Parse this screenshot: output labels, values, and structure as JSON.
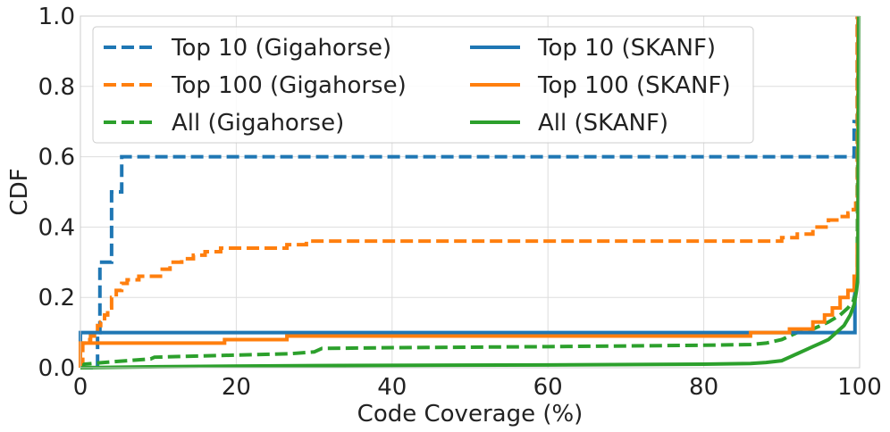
{
  "chart_data": {
    "type": "line",
    "title": "",
    "xlabel": "Code Coverage (%)",
    "ylabel": "CDF",
    "xlim": [
      0,
      100
    ],
    "ylim": [
      0,
      1
    ],
    "xticks": [
      "0",
      "20",
      "40",
      "60",
      "80",
      "100"
    ],
    "yticks": [
      "0.0",
      "0.2",
      "0.4",
      "0.6",
      "0.8",
      "1.0"
    ],
    "grid": true,
    "legend": {
      "placement": "upper-left",
      "columns": 2
    },
    "series": [
      {
        "name": "Top 10 (Gigahorse)",
        "color": "#1f77b4",
        "dash": "dashed",
        "step": true,
        "points": [
          [
            0,
            0
          ],
          [
            2.2,
            0
          ],
          [
            2.2,
            0.1
          ],
          [
            2.5,
            0.1
          ],
          [
            2.5,
            0.3
          ],
          [
            4,
            0.3
          ],
          [
            4,
            0.5
          ],
          [
            5.3,
            0.5
          ],
          [
            5.3,
            0.6
          ],
          [
            99.3,
            0.6
          ],
          [
            99.3,
            0.7
          ],
          [
            99.7,
            0.7
          ],
          [
            99.7,
            1.0
          ]
        ]
      },
      {
        "name": "Top 100 (Gigahorse)",
        "color": "#ff7f0e",
        "dash": "dashed",
        "step": true,
        "points": [
          [
            0,
            0.0
          ],
          [
            0.3,
            0.07
          ],
          [
            0.8,
            0.08
          ],
          [
            1.3,
            0.09
          ],
          [
            1.8,
            0.1
          ],
          [
            2.2,
            0.12
          ],
          [
            2.6,
            0.13
          ],
          [
            3.1,
            0.15
          ],
          [
            3.5,
            0.17
          ],
          [
            4.0,
            0.2
          ],
          [
            4.6,
            0.22
          ],
          [
            5.3,
            0.24
          ],
          [
            6.0,
            0.25
          ],
          [
            7.5,
            0.26
          ],
          [
            10.5,
            0.28
          ],
          [
            11.5,
            0.3
          ],
          [
            13,
            0.31
          ],
          [
            14.5,
            0.32
          ],
          [
            16,
            0.33
          ],
          [
            18,
            0.34
          ],
          [
            26.5,
            0.35
          ],
          [
            29,
            0.36
          ],
          [
            86,
            0.36
          ],
          [
            90,
            0.37
          ],
          [
            92,
            0.38
          ],
          [
            94,
            0.4
          ],
          [
            96,
            0.42
          ],
          [
            97.5,
            0.43
          ],
          [
            98.5,
            0.44
          ],
          [
            99.2,
            0.45
          ],
          [
            99.5,
            0.48
          ],
          [
            99.7,
            0.48
          ],
          [
            99.7,
            1.0
          ]
        ]
      },
      {
        "name": "All (Gigahorse)",
        "color": "#2ca02c",
        "dash": "dashed",
        "step": false,
        "points": [
          [
            0,
            0.0
          ],
          [
            0.5,
            0.01
          ],
          [
            3,
            0.015
          ],
          [
            6,
            0.02
          ],
          [
            9,
            0.025
          ],
          [
            9.5,
            0.03
          ],
          [
            27,
            0.04
          ],
          [
            30,
            0.045
          ],
          [
            31,
            0.055
          ],
          [
            40,
            0.057
          ],
          [
            60,
            0.06
          ],
          [
            80,
            0.064
          ],
          [
            86,
            0.066
          ],
          [
            88,
            0.07
          ],
          [
            90,
            0.08
          ],
          [
            92,
            0.1
          ],
          [
            94,
            0.11
          ],
          [
            96,
            0.13
          ],
          [
            97.5,
            0.15
          ],
          [
            98.5,
            0.17
          ],
          [
            99.2,
            0.19
          ],
          [
            99.5,
            0.22
          ],
          [
            99.7,
            0.25
          ],
          [
            99.8,
            1.0
          ]
        ]
      },
      {
        "name": "Top 10 (SKANF)",
        "color": "#1f77b4",
        "dash": "solid",
        "step": true,
        "points": [
          [
            0,
            0.0
          ],
          [
            0,
            0.1
          ],
          [
            99.4,
            0.1
          ],
          [
            99.4,
            0.25
          ],
          [
            99.8,
            0.25
          ],
          [
            99.8,
            1.0
          ]
        ]
      },
      {
        "name": "Top 100 (SKANF)",
        "color": "#ff7f0e",
        "dash": "solid",
        "step": true,
        "points": [
          [
            0,
            0.0
          ],
          [
            0,
            0.07
          ],
          [
            18.5,
            0.07
          ],
          [
            18.5,
            0.08
          ],
          [
            26.5,
            0.08
          ],
          [
            26.5,
            0.09
          ],
          [
            86,
            0.09
          ],
          [
            86,
            0.1
          ],
          [
            91,
            0.1
          ],
          [
            91,
            0.11
          ],
          [
            94,
            0.11
          ],
          [
            94,
            0.13
          ],
          [
            95.5,
            0.13
          ],
          [
            95.5,
            0.15
          ],
          [
            96.5,
            0.15
          ],
          [
            96.5,
            0.17
          ],
          [
            97.5,
            0.17
          ],
          [
            97.5,
            0.2
          ],
          [
            98.5,
            0.2
          ],
          [
            98.5,
            0.22
          ],
          [
            99.3,
            0.22
          ],
          [
            99.3,
            0.26
          ],
          [
            99.7,
            0.26
          ],
          [
            99.7,
            0.35
          ],
          [
            99.8,
            0.35
          ],
          [
            99.8,
            1.0
          ]
        ]
      },
      {
        "name": "All (SKANF)",
        "color": "#2ca02c",
        "dash": "solid",
        "step": false,
        "points": [
          [
            0,
            0.0
          ],
          [
            10,
            0.003
          ],
          [
            30,
            0.006
          ],
          [
            60,
            0.008
          ],
          [
            80,
            0.01
          ],
          [
            86,
            0.012
          ],
          [
            88,
            0.015
          ],
          [
            90,
            0.02
          ],
          [
            91,
            0.03
          ],
          [
            92,
            0.04
          ],
          [
            93,
            0.05
          ],
          [
            94,
            0.06
          ],
          [
            95,
            0.07
          ],
          [
            96,
            0.08
          ],
          [
            97,
            0.1
          ],
          [
            98,
            0.12
          ],
          [
            98.8,
            0.15
          ],
          [
            99.3,
            0.18
          ],
          [
            99.6,
            0.22
          ],
          [
            99.8,
            0.26
          ],
          [
            99.9,
            1.0
          ]
        ]
      }
    ]
  }
}
